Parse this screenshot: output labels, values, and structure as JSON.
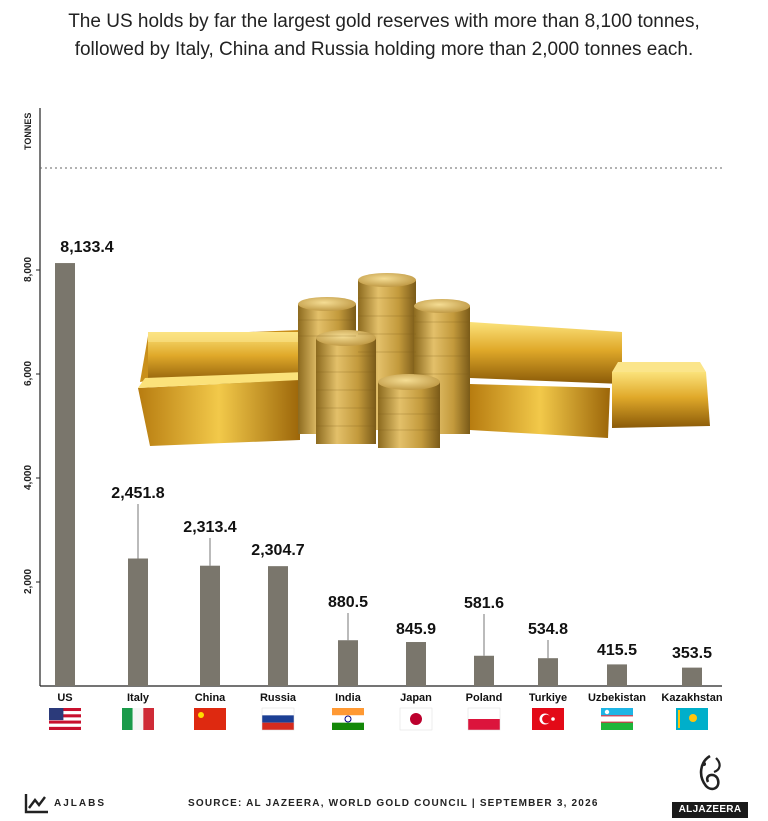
{
  "title": {
    "line1": "The US holds by far the largest gold reserves with more than 8,100 tonnes,",
    "line2": "followed by Italy, China and Russia holding more than 2,000 tonnes each."
  },
  "chart_data": {
    "type": "bar",
    "title": "The US holds by far the largest gold reserves with more than 8,100 tonnes, followed by Italy, China and Russia holding more than 2,000 tonnes each.",
    "ylabel": "TONNES",
    "xlabel": "",
    "ylim": [
      0,
      10000
    ],
    "yticks": [
      2000,
      4000,
      6000,
      8000
    ],
    "ytick_labels": [
      "2,000",
      "4,000",
      "6,000",
      "8,000"
    ],
    "categories": [
      "US",
      "Italy",
      "China",
      "Russia",
      "India",
      "Japan",
      "Poland",
      "Turkiye",
      "Uzbekistan",
      "Kazakhstan"
    ],
    "values": [
      8133.4,
      2451.8,
      2313.4,
      2304.7,
      880.5,
      845.9,
      581.6,
      534.8,
      415.5,
      353.5
    ],
    "value_labels": [
      "8,133.4",
      "2,451.8",
      "2,313.4",
      "2,304.7",
      "880.5",
      "845.9",
      "581.6",
      "534.8",
      "415.5",
      "353.5"
    ],
    "grid": false,
    "bar_color": "#7a766c",
    "top_reference_line": "dotted"
  },
  "footer": {
    "source": "SOURCE: AL JAZEERA, WORLD GOLD COUNCIL  |  SEPTEMBER 3, 2026",
    "brand_left": "AJLABS",
    "brand_right": "ALJAZEERA"
  },
  "colors": {
    "bar": "#7a766c",
    "gold": "#d4a437",
    "text": "#222222"
  },
  "icons": [
    "gold-bars-and-coins-illustration",
    "us-flag-icon",
    "italy-flag-icon",
    "china-flag-icon",
    "russia-flag-icon",
    "india-flag-icon",
    "japan-flag-icon",
    "poland-flag-icon",
    "turkiye-flag-icon",
    "uzbekistan-flag-icon",
    "kazakhstan-flag-icon",
    "ajlabs-logo-icon",
    "aljazeera-logo-icon"
  ]
}
